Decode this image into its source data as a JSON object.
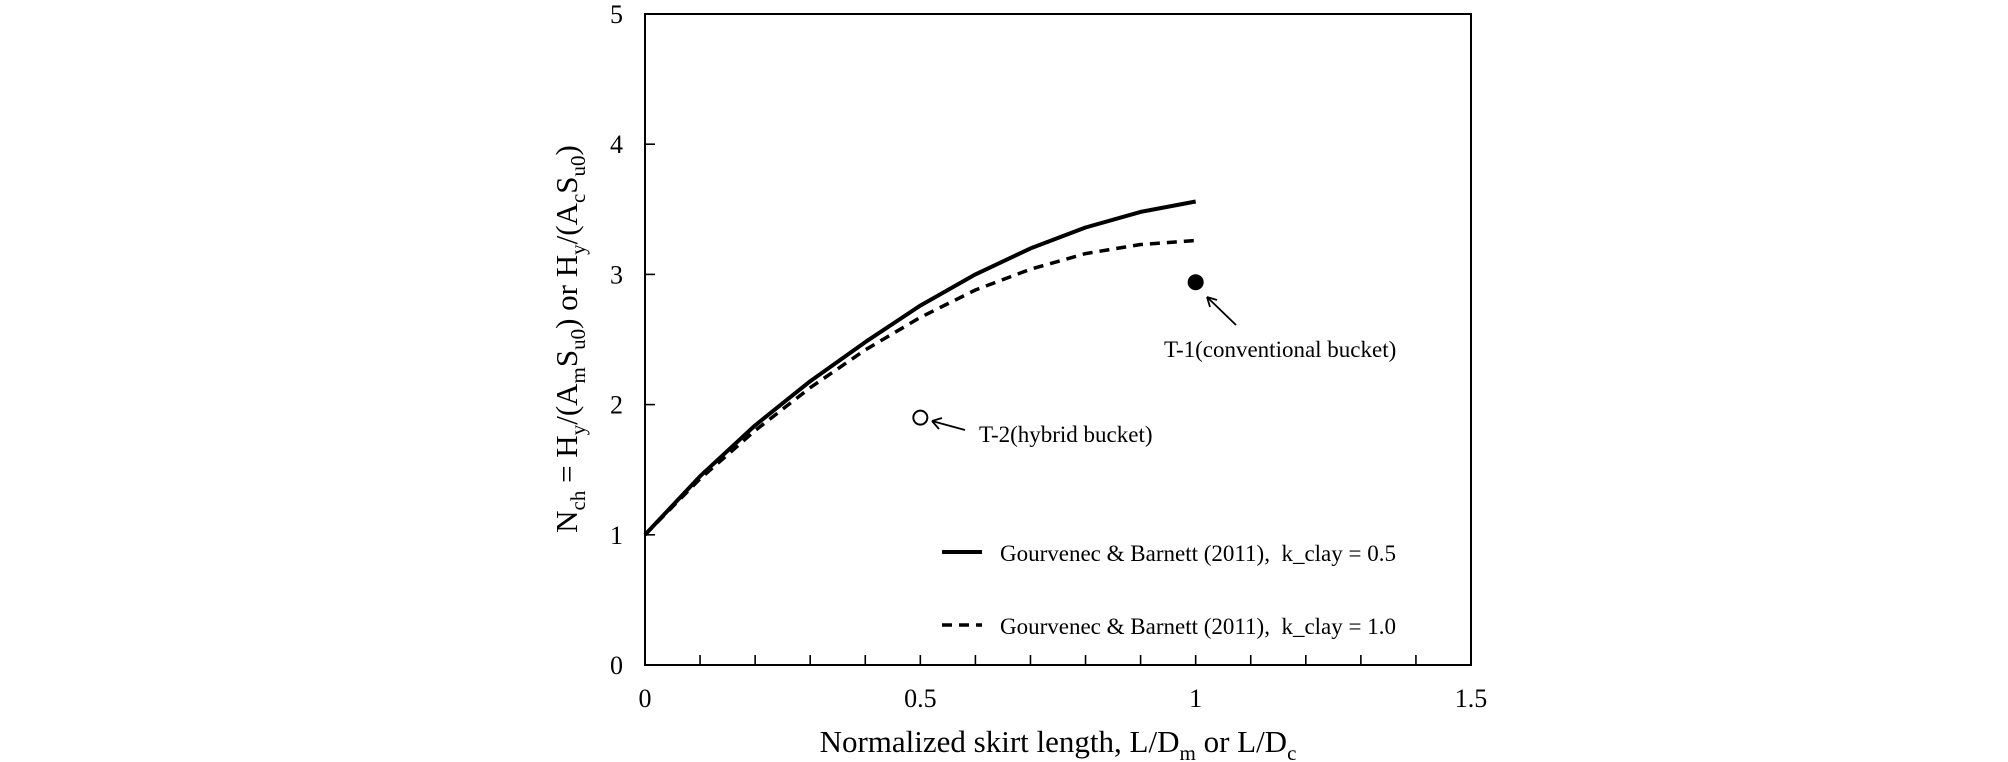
{
  "chart_data": {
    "type": "line",
    "xlabel": "Normalized skirt length, L/D",
    "xlabel_sub_1": "m",
    "xlabel_mid": " or L/D",
    "xlabel_sub_2": "c",
    "ylabel": {
      "p1": "N",
      "p1_sub": "ch",
      "p2": " = H",
      "p2_sub": "y",
      "p3": "/(A",
      "p3_sub": "m",
      "p4": "S",
      "p4_sub": "u0",
      "p5": ")   or H",
      "p5_sub": "y",
      "p6": "/(A",
      "p6_sub": "c",
      "p7": "S",
      "p7_sub": "u0",
      "p8": ")"
    },
    "xlim": [
      0,
      1.5
    ],
    "ylim": [
      0,
      5
    ],
    "x_ticks": [
      0,
      0.5,
      1,
      1.5
    ],
    "x_tick_labels": [
      "0",
      "0.5",
      "1",
      "1.5"
    ],
    "x_minor_step": 0.1,
    "y_ticks": [
      0,
      1,
      2,
      3,
      4,
      5
    ],
    "y_tick_labels": [
      "0",
      "1",
      "2",
      "3",
      "4",
      "5"
    ],
    "grid": false,
    "legend_position": "bottom-right",
    "series": [
      {
        "name": "Gourvenec & Barnett (2011),  k_clay = 0.5",
        "style": "solid",
        "x": [
          0,
          0.1,
          0.2,
          0.3,
          0.4,
          0.5,
          0.6,
          0.7,
          0.8,
          0.9,
          1.0
        ],
        "y": [
          1.0,
          1.45,
          1.84,
          2.18,
          2.48,
          2.76,
          3.0,
          3.2,
          3.36,
          3.48,
          3.56
        ]
      },
      {
        "name": "Gourvenec & Barnett (2011),  k_clay = 1.0",
        "style": "dashed",
        "x": [
          0,
          0.1,
          0.2,
          0.3,
          0.4,
          0.5,
          0.6,
          0.7,
          0.8,
          0.9,
          1.0
        ],
        "y": [
          1.0,
          1.43,
          1.8,
          2.13,
          2.42,
          2.67,
          2.88,
          3.04,
          3.16,
          3.23,
          3.26
        ]
      }
    ],
    "points": [
      {
        "label": "T-1(conventional bucket)",
        "x": 1.0,
        "y": 2.94,
        "filled": true
      },
      {
        "label": "T-2(hybrid bucket)",
        "x": 0.5,
        "y": 1.9,
        "filled": false
      }
    ]
  },
  "colors": {
    "ink": "#000000",
    "background": "#ffffff"
  }
}
